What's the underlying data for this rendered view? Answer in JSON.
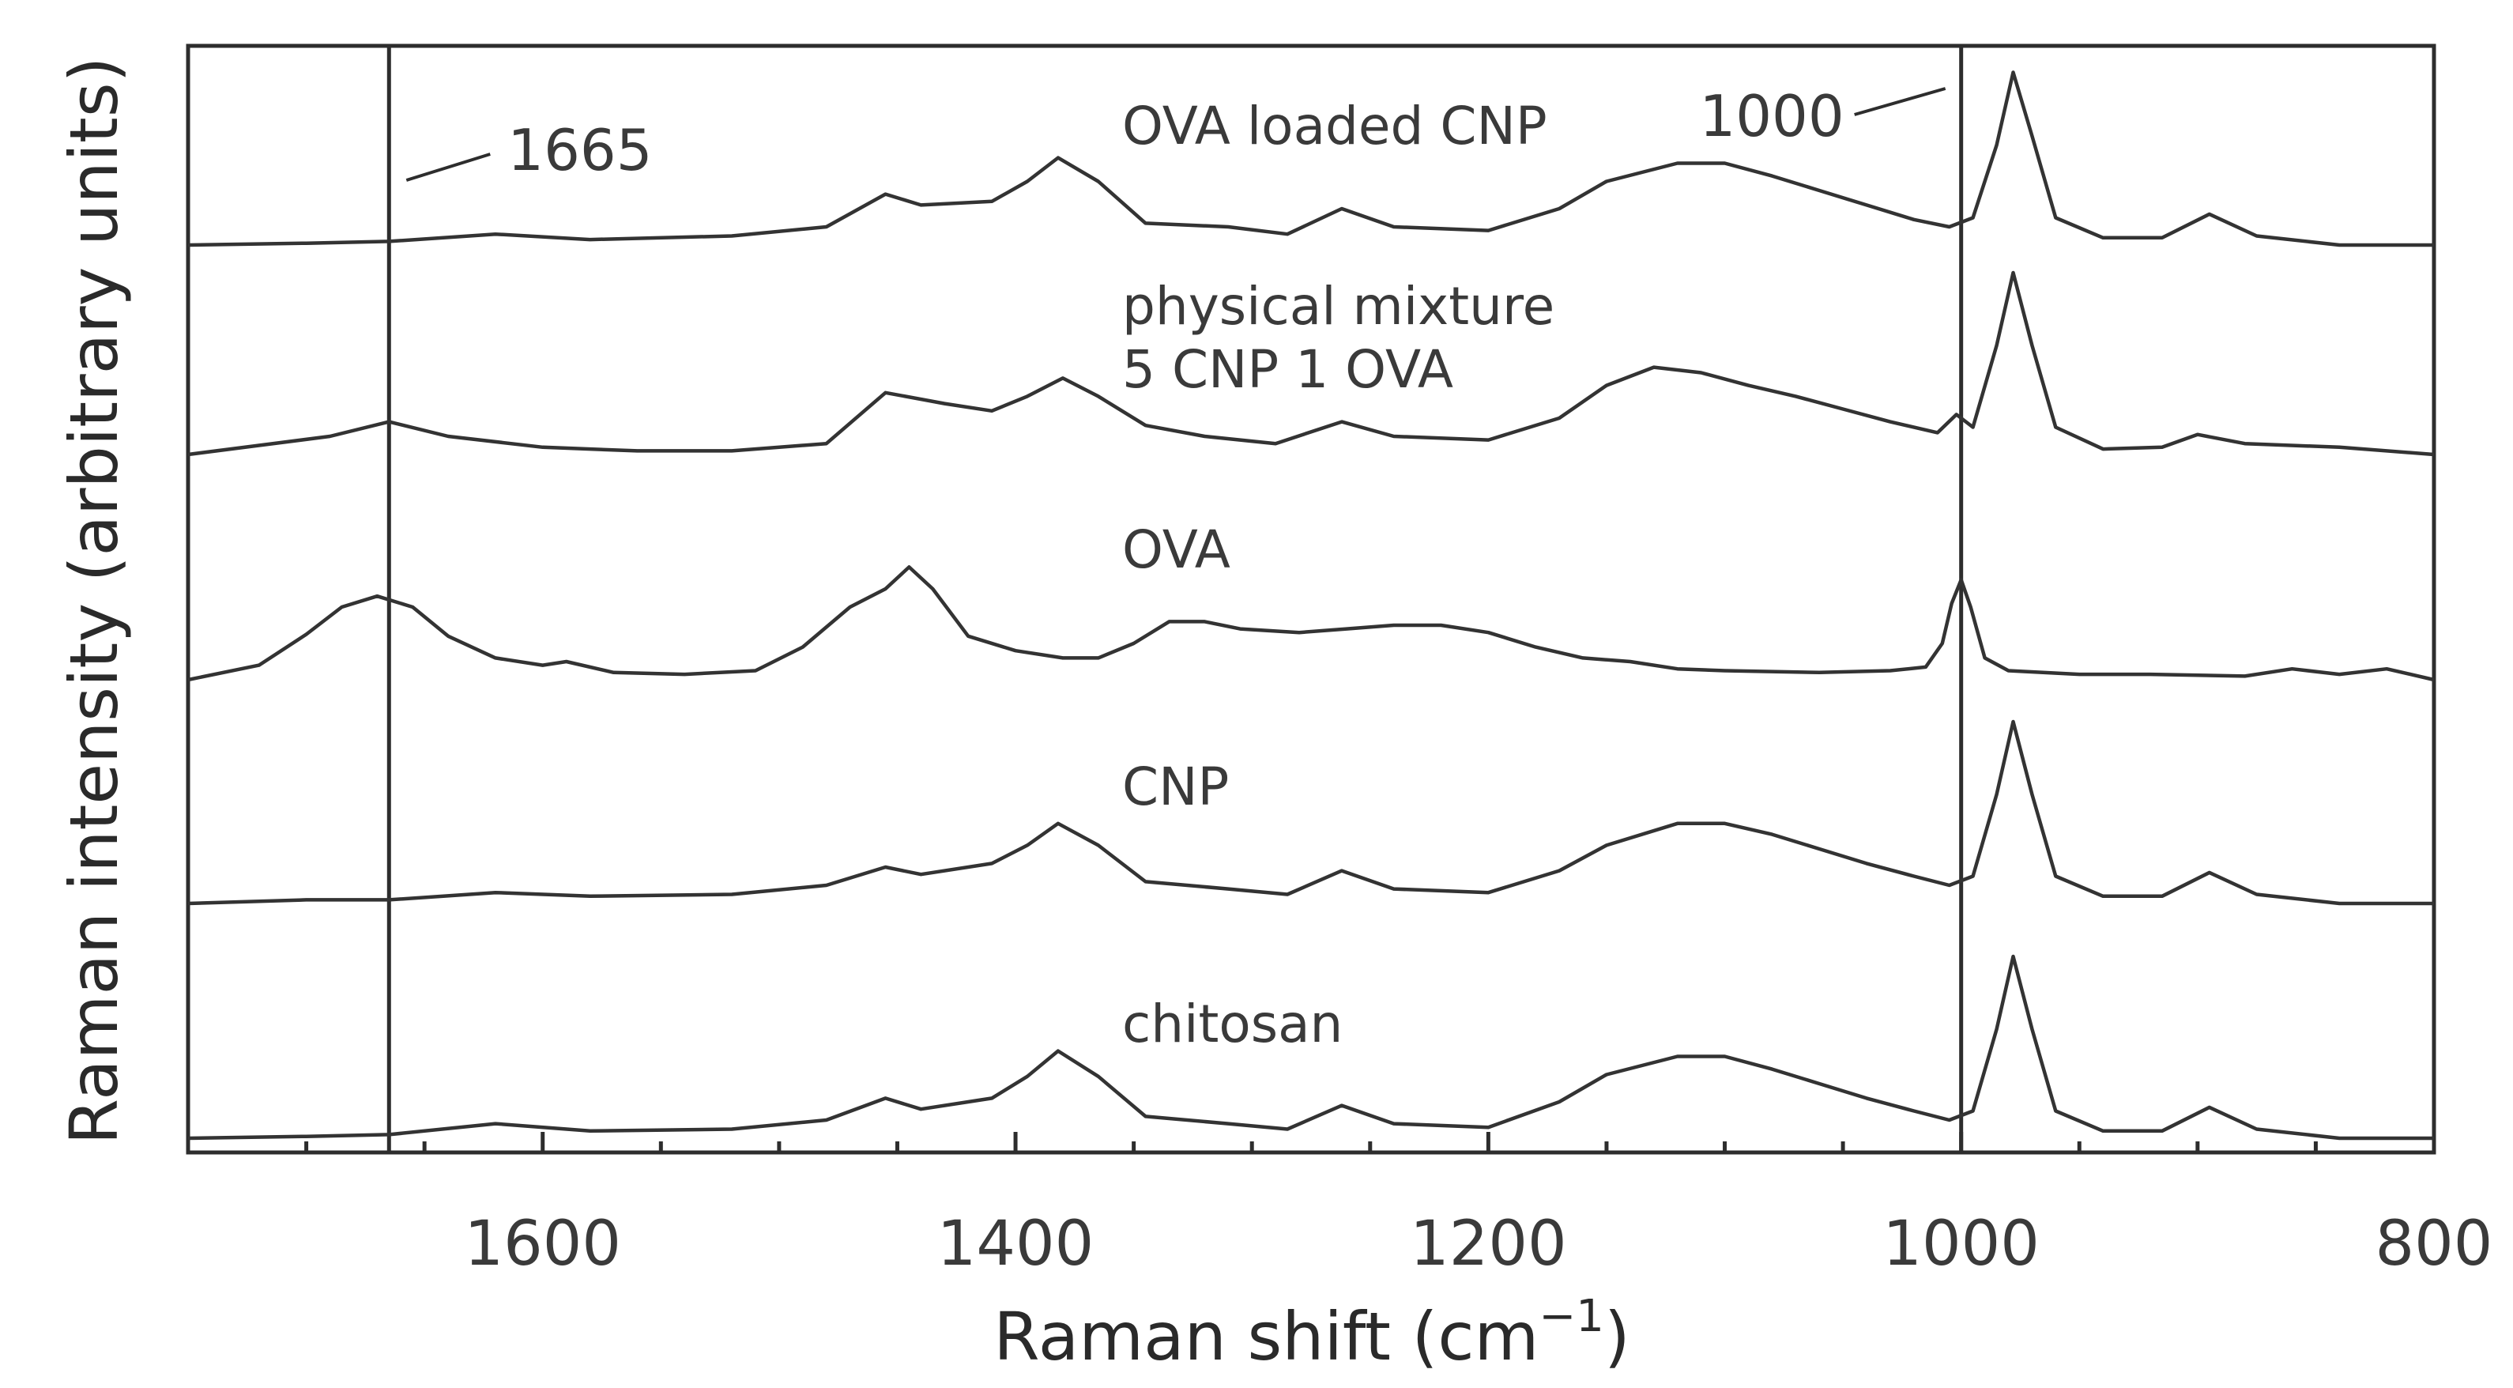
{
  "chart_data": {
    "type": "line",
    "title": "",
    "xlabel": "Raman shift (cm",
    "xlabel_superscript": "−1",
    "xlabel_close": ")",
    "ylabel": "Raman intensity (arbitrary units)",
    "xlim": [
      1750,
      800
    ],
    "x_reversed": true,
    "y_ticks_shown": false,
    "x_major_ticks": [
      1600,
      1400,
      1200,
      1000,
      800
    ],
    "x_tick_labels": [
      "1600",
      "1400",
      "1200",
      "1000",
      "800"
    ],
    "x_minor_tick_step": 50,
    "grid": false,
    "reference_lines": [
      {
        "x": 1665,
        "label": "1665"
      },
      {
        "x": 1000,
        "label": "1000"
      }
    ],
    "series": [
      {
        "name": "OVA loaded CNP",
        "label_lines": [
          "OVA loaded CNP"
        ],
        "offset": 4.0,
        "points": [
          [
            1750,
            0.0
          ],
          [
            1700,
            0.01
          ],
          [
            1665,
            0.02
          ],
          [
            1620,
            0.06
          ],
          [
            1580,
            0.03
          ],
          [
            1520,
            0.05
          ],
          [
            1480,
            0.1
          ],
          [
            1455,
            0.28
          ],
          [
            1440,
            0.22
          ],
          [
            1410,
            0.24
          ],
          [
            1395,
            0.35
          ],
          [
            1382,
            0.48
          ],
          [
            1365,
            0.35
          ],
          [
            1345,
            0.12
          ],
          [
            1310,
            0.1
          ],
          [
            1285,
            0.06
          ],
          [
            1262,
            0.2
          ],
          [
            1240,
            0.1
          ],
          [
            1200,
            0.08
          ],
          [
            1170,
            0.2
          ],
          [
            1150,
            0.35
          ],
          [
            1120,
            0.45
          ],
          [
            1100,
            0.45
          ],
          [
            1080,
            0.38
          ],
          [
            1060,
            0.3
          ],
          [
            1040,
            0.22
          ],
          [
            1020,
            0.14
          ],
          [
            1005,
            0.1
          ],
          [
            995,
            0.15
          ],
          [
            985,
            0.55
          ],
          [
            978,
            0.95
          ],
          [
            970,
            0.6
          ],
          [
            960,
            0.15
          ],
          [
            940,
            0.04
          ],
          [
            915,
            0.04
          ],
          [
            895,
            0.17
          ],
          [
            875,
            0.05
          ],
          [
            840,
            0.0
          ],
          [
            800,
            0.0
          ]
        ]
      },
      {
        "name": "physical mixture 5 CNP 1 OVA",
        "label_lines": [
          "physical mixture",
          "5 CNP 1 OVA"
        ],
        "offset": 3.0,
        "points": [
          [
            1750,
            0.0
          ],
          [
            1720,
            0.05
          ],
          [
            1690,
            0.1
          ],
          [
            1665,
            0.18
          ],
          [
            1640,
            0.1
          ],
          [
            1600,
            0.04
          ],
          [
            1560,
            0.02
          ],
          [
            1520,
            0.02
          ],
          [
            1480,
            0.06
          ],
          [
            1455,
            0.34
          ],
          [
            1430,
            0.28
          ],
          [
            1410,
            0.24
          ],
          [
            1395,
            0.32
          ],
          [
            1380,
            0.42
          ],
          [
            1365,
            0.32
          ],
          [
            1345,
            0.16
          ],
          [
            1320,
            0.1
          ],
          [
            1290,
            0.06
          ],
          [
            1262,
            0.18
          ],
          [
            1240,
            0.1
          ],
          [
            1200,
            0.08
          ],
          [
            1170,
            0.2
          ],
          [
            1150,
            0.38
          ],
          [
            1130,
            0.48
          ],
          [
            1110,
            0.45
          ],
          [
            1090,
            0.38
          ],
          [
            1070,
            0.32
          ],
          [
            1050,
            0.25
          ],
          [
            1030,
            0.18
          ],
          [
            1010,
            0.12
          ],
          [
            1002,
            0.22
          ],
          [
            995,
            0.15
          ],
          [
            985,
            0.6
          ],
          [
            978,
            1.0
          ],
          [
            970,
            0.6
          ],
          [
            960,
            0.15
          ],
          [
            940,
            0.03
          ],
          [
            915,
            0.04
          ],
          [
            900,
            0.11
          ],
          [
            880,
            0.06
          ],
          [
            840,
            0.04
          ],
          [
            800,
            0.0
          ]
        ]
      },
      {
        "name": "OVA",
        "label_lines": [
          "OVA"
        ],
        "offset": 2.0,
        "points": [
          [
            1750,
            0.0
          ],
          [
            1720,
            0.08
          ],
          [
            1700,
            0.25
          ],
          [
            1685,
            0.4
          ],
          [
            1670,
            0.46
          ],
          [
            1655,
            0.4
          ],
          [
            1640,
            0.24
          ],
          [
            1620,
            0.12
          ],
          [
            1600,
            0.08
          ],
          [
            1590,
            0.1
          ],
          [
            1570,
            0.04
          ],
          [
            1540,
            0.03
          ],
          [
            1510,
            0.05
          ],
          [
            1490,
            0.18
          ],
          [
            1470,
            0.4
          ],
          [
            1455,
            0.5
          ],
          [
            1445,
            0.62
          ],
          [
            1435,
            0.5
          ],
          [
            1420,
            0.24
          ],
          [
            1400,
            0.16
          ],
          [
            1380,
            0.12
          ],
          [
            1365,
            0.12
          ],
          [
            1350,
            0.2
          ],
          [
            1335,
            0.32
          ],
          [
            1320,
            0.32
          ],
          [
            1305,
            0.28
          ],
          [
            1280,
            0.26
          ],
          [
            1260,
            0.28
          ],
          [
            1240,
            0.3
          ],
          [
            1220,
            0.3
          ],
          [
            1200,
            0.26
          ],
          [
            1180,
            0.18
          ],
          [
            1160,
            0.12
          ],
          [
            1140,
            0.1
          ],
          [
            1120,
            0.06
          ],
          [
            1100,
            0.05
          ],
          [
            1060,
            0.04
          ],
          [
            1030,
            0.05
          ],
          [
            1015,
            0.07
          ],
          [
            1008,
            0.2
          ],
          [
            1004,
            0.42
          ],
          [
            1000,
            0.55
          ],
          [
            996,
            0.4
          ],
          [
            990,
            0.12
          ],
          [
            980,
            0.05
          ],
          [
            950,
            0.03
          ],
          [
            920,
            0.03
          ],
          [
            880,
            0.02
          ],
          [
            860,
            0.06
          ],
          [
            840,
            0.03
          ],
          [
            820,
            0.06
          ],
          [
            800,
            0.0
          ]
        ]
      },
      {
        "name": "CNP",
        "label_lines": [
          "CNP"
        ],
        "offset": 1.0,
        "points": [
          [
            1750,
            0.0
          ],
          [
            1700,
            0.02
          ],
          [
            1665,
            0.02
          ],
          [
            1620,
            0.06
          ],
          [
            1580,
            0.04
          ],
          [
            1520,
            0.05
          ],
          [
            1480,
            0.1
          ],
          [
            1455,
            0.2
          ],
          [
            1440,
            0.16
          ],
          [
            1410,
            0.22
          ],
          [
            1395,
            0.32
          ],
          [
            1382,
            0.44
          ],
          [
            1365,
            0.32
          ],
          [
            1345,
            0.12
          ],
          [
            1310,
            0.08
          ],
          [
            1285,
            0.05
          ],
          [
            1262,
            0.18
          ],
          [
            1240,
            0.08
          ],
          [
            1200,
            0.06
          ],
          [
            1170,
            0.18
          ],
          [
            1150,
            0.32
          ],
          [
            1120,
            0.44
          ],
          [
            1100,
            0.44
          ],
          [
            1080,
            0.38
          ],
          [
            1060,
            0.3
          ],
          [
            1040,
            0.22
          ],
          [
            1020,
            0.15
          ],
          [
            1005,
            0.1
          ],
          [
            995,
            0.15
          ],
          [
            985,
            0.6
          ],
          [
            978,
            1.0
          ],
          [
            970,
            0.6
          ],
          [
            960,
            0.15
          ],
          [
            940,
            0.04
          ],
          [
            915,
            0.04
          ],
          [
            895,
            0.17
          ],
          [
            875,
            0.05
          ],
          [
            840,
            0.0
          ],
          [
            800,
            0.0
          ]
        ]
      },
      {
        "name": "chitosan",
        "label_lines": [
          "chitosan"
        ],
        "offset": 0.0,
        "points": [
          [
            1750,
            0.0
          ],
          [
            1700,
            0.01
          ],
          [
            1665,
            0.02
          ],
          [
            1620,
            0.08
          ],
          [
            1580,
            0.04
          ],
          [
            1520,
            0.05
          ],
          [
            1480,
            0.1
          ],
          [
            1455,
            0.22
          ],
          [
            1440,
            0.16
          ],
          [
            1410,
            0.22
          ],
          [
            1395,
            0.34
          ],
          [
            1382,
            0.48
          ],
          [
            1365,
            0.34
          ],
          [
            1345,
            0.12
          ],
          [
            1310,
            0.08
          ],
          [
            1285,
            0.05
          ],
          [
            1262,
            0.18
          ],
          [
            1240,
            0.08
          ],
          [
            1200,
            0.06
          ],
          [
            1170,
            0.2
          ],
          [
            1150,
            0.35
          ],
          [
            1120,
            0.45
          ],
          [
            1100,
            0.45
          ],
          [
            1080,
            0.38
          ],
          [
            1060,
            0.3
          ],
          [
            1040,
            0.22
          ],
          [
            1020,
            0.15
          ],
          [
            1005,
            0.1
          ],
          [
            995,
            0.15
          ],
          [
            985,
            0.6
          ],
          [
            978,
            1.0
          ],
          [
            970,
            0.6
          ],
          [
            960,
            0.15
          ],
          [
            940,
            0.04
          ],
          [
            915,
            0.04
          ],
          [
            895,
            0.17
          ],
          [
            875,
            0.05
          ],
          [
            840,
            0.0
          ],
          [
            800,
            0.0
          ]
        ]
      }
    ]
  }
}
